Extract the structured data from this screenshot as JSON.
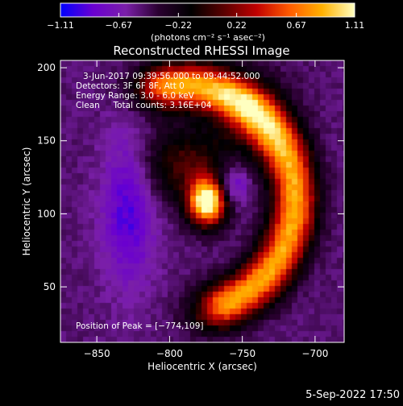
{
  "chart_data": {
    "type": "heatmap",
    "title": "Reconstructed RHESSI Image",
    "xlabel": "Heliocentric X (arcsec)",
    "ylabel": "Heliocentric Y (arcsec)",
    "xlim": [
      -875,
      -680
    ],
    "ylim": [
      12,
      205
    ],
    "xticks": [
      -850,
      -800,
      -750,
      -700
    ],
    "yticks": [
      50,
      100,
      150,
      200
    ],
    "xtick_labels": [
      "−850",
      "−800",
      "−750",
      "−700"
    ],
    "ytick_labels": [
      "50",
      "100",
      "150",
      "200"
    ],
    "colorbar": {
      "range": [
        -1.11,
        1.11
      ],
      "ticks": [
        -1.11,
        -0.67,
        -0.22,
        0.22,
        0.67,
        1.11
      ],
      "tick_labels": [
        "−1.11",
        "−0.67",
        "−0.22",
        "0.22",
        "0.67",
        "1.11"
      ],
      "unit_label": "(photons cm⁻² s⁻¹ asec⁻²)",
      "colormap": [
        "#0000ff",
        "#6a00d0",
        "#7a1fa8",
        "#2a0030",
        "#000000",
        "#5a0000",
        "#c00000",
        "#ff5a00",
        "#ffb000",
        "#ffffc0"
      ]
    },
    "annotations": [
      "3-Jun-2017 09:39:56.000 to 09:44:52.000",
      "Detectors: 3F 6F 8F, Att 0",
      "Energy Range: 3.0 - 6.0 keV",
      "Clean     Total counts: 3.16E+04",
      "Position of Peak = [−774,109]"
    ],
    "peak": {
      "x": -774,
      "y": 109
    },
    "background_value": -0.5,
    "sources": [
      {
        "kind": "blob",
        "x": -774,
        "y": 108,
        "sx": 9,
        "sy": 11,
        "amp": 1.75
      },
      {
        "kind": "blob",
        "x": -790,
        "y": 134,
        "sx": 22,
        "sy": 18,
        "amp": 0.55
      },
      {
        "kind": "blob",
        "x": -757,
        "y": 120,
        "sx": 8,
        "sy": 10,
        "amp": -0.5
      },
      {
        "kind": "blob",
        "x": -828,
        "y": 105,
        "sx": 13,
        "sy": 38,
        "amp": -0.45
      },
      {
        "kind": "arc",
        "cx": -792,
        "cy": 110,
        "r": 78,
        "width": 11,
        "amp": 1.35,
        "theta_min_deg": -65,
        "theta_max_deg": 95
      },
      {
        "kind": "blob",
        "x": -745,
        "y": 168,
        "sx": 20,
        "sy": 22,
        "amp": 0.35
      }
    ]
  },
  "timestamp": "5-Sep-2022 17:50"
}
